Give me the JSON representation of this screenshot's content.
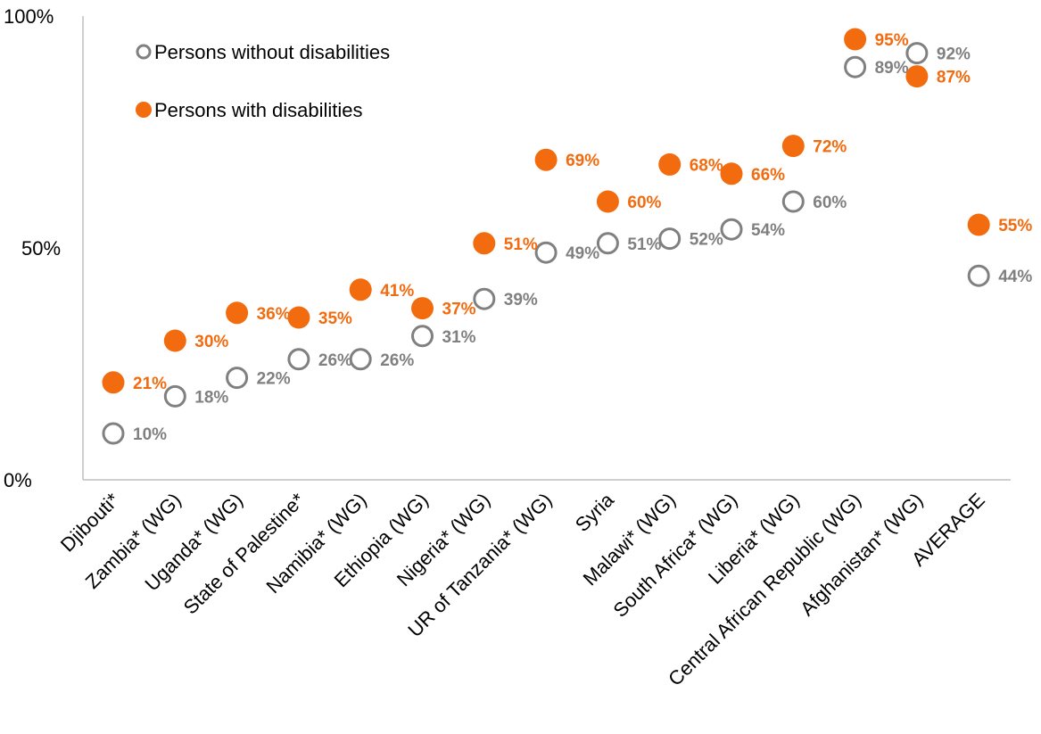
{
  "chart_data": {
    "type": "scatter",
    "categories": [
      "Djibouti*",
      "Zambia* (WG)",
      "Uganda* (WG)",
      "State of Palestine*",
      "Namibia* (WG)",
      "Ethiopia (WG)",
      "Nigeria* (WG)",
      "UR of Tanzania* (WG)",
      "Syria",
      "Malawi* (WG)",
      "South Africa* (WG)",
      "Liberia* (WG)",
      "Central African Republic (WG)",
      "Afghanistan* (WG)",
      "AVERAGE"
    ],
    "series": [
      {
        "name": "Persons without disabilities",
        "color": "#808080",
        "marker": "hollow-circle",
        "values": [
          10,
          18,
          22,
          26,
          26,
          31,
          39,
          49,
          51,
          52,
          54,
          60,
          89,
          92,
          44
        ],
        "labels": [
          "10%",
          "18%",
          "22%",
          "26%",
          "26%",
          "31%",
          "39%",
          "49%",
          "51%",
          "52%",
          "54%",
          "60%",
          "89%",
          "92%",
          "44%"
        ]
      },
      {
        "name": "Persons with disabilities",
        "color": "#F26B0F",
        "marker": "filled-circle",
        "values": [
          21,
          30,
          36,
          35,
          41,
          37,
          51,
          69,
          60,
          68,
          66,
          72,
          95,
          87,
          55
        ],
        "labels": [
          "21%",
          "30%",
          "36%",
          "35%",
          "41%",
          "37%",
          "51%",
          "69%",
          "60%",
          "68%",
          "66%",
          "72%",
          "95%",
          "87%",
          "55%"
        ]
      }
    ],
    "y_ticks": [
      "0%",
      "50%",
      "100%"
    ],
    "ylim": [
      0,
      100
    ],
    "grid": false,
    "legend_position": "top-left"
  }
}
